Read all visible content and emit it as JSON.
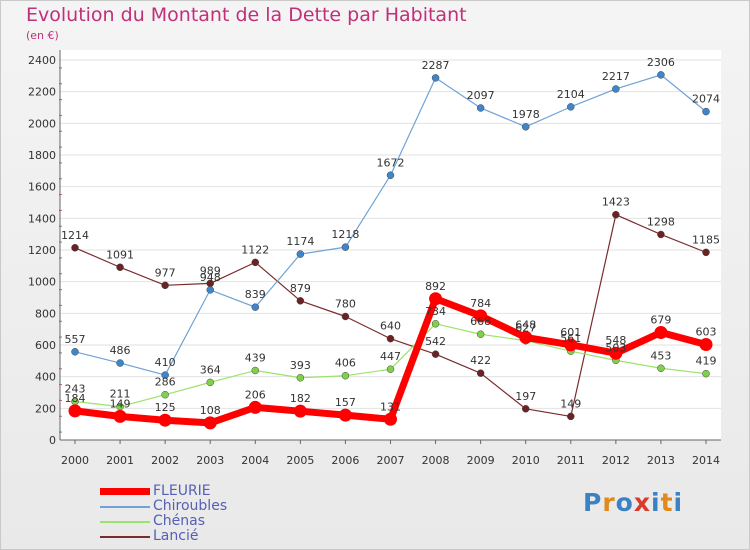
{
  "title": "Evolution du Montant de la Dette par Habitant",
  "unit": "(en €)",
  "logo": {
    "letters": [
      "P",
      "r",
      "o",
      "x",
      "i",
      "t",
      "i"
    ],
    "colors": [
      "#3b82c4",
      "#e08a1e",
      "#3b82c4",
      "#d93a2b",
      "#3b82c4",
      "#e08a1e",
      "#3b82c4"
    ]
  },
  "chart_data": {
    "type": "line",
    "title": "Evolution du Montant de la Dette par Habitant",
    "ylabel": "(en €)",
    "xlabel": "",
    "ylim": [
      0,
      2400
    ],
    "yticks": [
      0,
      200,
      400,
      600,
      800,
      1000,
      1200,
      1400,
      1600,
      1800,
      2000,
      2200,
      2400
    ],
    "categories": [
      "2000",
      "2001",
      "2002",
      "2003",
      "2004",
      "2005",
      "2006",
      "2007",
      "2008",
      "2009",
      "2010",
      "2011",
      "2012",
      "2013",
      "2014"
    ],
    "grid": true,
    "legend_position": "bottom-left",
    "series": [
      {
        "name": "FLEURIE",
        "color": "#ff0000",
        "marker": "#ff0000",
        "values": [
          184,
          149,
          125,
          108,
          206,
          182,
          157,
          131,
          892,
          784,
          648,
          601,
          548,
          679,
          603
        ]
      },
      {
        "name": "Chiroubles",
        "color": "#6fa3d6",
        "marker": "#3e86cb",
        "values": [
          557,
          486,
          410,
          948,
          839,
          1174,
          1218,
          1672,
          2287,
          2097,
          1978,
          2104,
          2217,
          2306,
          2074
        ]
      },
      {
        "name": "Chénas",
        "color": "#9be36a",
        "marker": "#80d04c",
        "values": [
          243,
          211,
          286,
          364,
          439,
          393,
          406,
          447,
          734,
          668,
          627,
          561,
          503,
          453,
          419
        ]
      },
      {
        "name": "Lancié",
        "color": "#7a2c2c",
        "marker": "#6b2222",
        "values": [
          1214,
          1091,
          977,
          989,
          1122,
          879,
          780,
          640,
          542,
          422,
          197,
          149,
          1423,
          1298,
          1185
        ]
      }
    ]
  }
}
